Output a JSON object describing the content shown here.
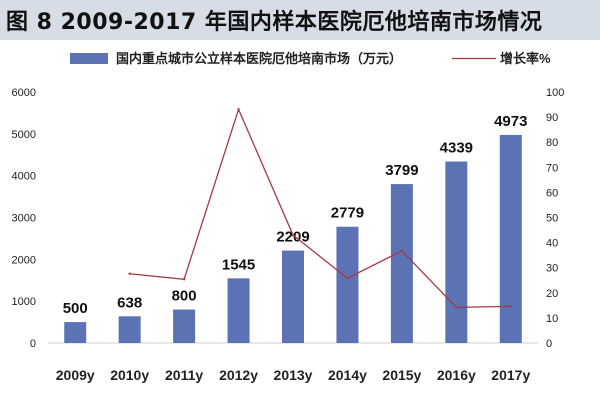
{
  "page": {
    "title": "图 8 2009-2017 年国内样本医院厄他培南市场情况"
  },
  "chart_data": {
    "type": "bar+line",
    "categories": [
      "2009y",
      "2010y",
      "2011y",
      "2012y",
      "2013y",
      "2014y",
      "2015y",
      "2016y",
      "2017y"
    ],
    "series": [
      {
        "name": "国内重点城市公立样本医院厄他培南市场（万元）",
        "type": "bar",
        "axis": "left",
        "values": [
          500,
          638,
          800,
          1545,
          2209,
          2779,
          3799,
          4339,
          4973
        ],
        "labels": [
          "500",
          "638",
          "800",
          "1545",
          "2209",
          "2779",
          "3799",
          "4339",
          "4973"
        ],
        "color": "#5b73b4"
      },
      {
        "name": "增长率%",
        "type": "line",
        "axis": "right",
        "values": [
          null,
          27.6,
          25.4,
          93.1,
          43.0,
          25.8,
          36.7,
          14.2,
          14.6
        ],
        "color": "#a53a44"
      }
    ],
    "yleft": {
      "ylim": [
        0,
        6000
      ],
      "ticks": [
        0,
        1000,
        2000,
        3000,
        4000,
        5000,
        6000
      ]
    },
    "yright": {
      "ylim": [
        0,
        100
      ],
      "ticks": [
        0,
        10,
        20,
        30,
        40,
        50,
        60,
        70,
        80,
        90,
        100
      ]
    },
    "legend": "top",
    "grid": false
  }
}
